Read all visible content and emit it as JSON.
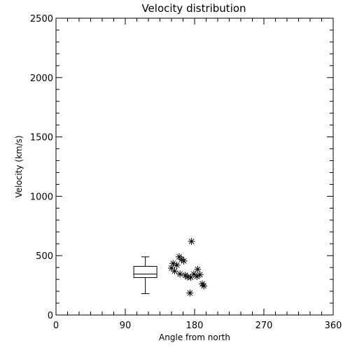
{
  "chart_data": {
    "type": "scatter",
    "title": "Velocity distribution",
    "xlabel": "Angle from north",
    "ylabel": "Velocity (km/s)",
    "xlim": [
      0,
      360
    ],
    "ylim": [
      0,
      2500
    ],
    "xticks": [
      0,
      90,
      180,
      270,
      360
    ],
    "yticks": [
      0,
      500,
      1000,
      1500,
      2000,
      2500
    ],
    "grid": false,
    "marker": "asterisk",
    "points": [
      {
        "x": 176,
        "y": 620
      },
      {
        "x": 160,
        "y": 490
      },
      {
        "x": 163,
        "y": 470
      },
      {
        "x": 166,
        "y": 455
      },
      {
        "x": 152,
        "y": 435
      },
      {
        "x": 157,
        "y": 420
      },
      {
        "x": 150,
        "y": 395
      },
      {
        "x": 184,
        "y": 385
      },
      {
        "x": 154,
        "y": 370
      },
      {
        "x": 161,
        "y": 345
      },
      {
        "x": 179,
        "y": 345
      },
      {
        "x": 187,
        "y": 340
      },
      {
        "x": 168,
        "y": 335
      },
      {
        "x": 171,
        "y": 320
      },
      {
        "x": 175,
        "y": 318
      },
      {
        "x": 183,
        "y": 325
      },
      {
        "x": 190,
        "y": 262
      },
      {
        "x": 192,
        "y": 245
      },
      {
        "x": 174,
        "y": 185
      }
    ],
    "boxplot": {
      "x": 116,
      "width_x": 30,
      "min": 180,
      "q1": 315,
      "median": 345,
      "q3": 410,
      "max": 490
    }
  }
}
